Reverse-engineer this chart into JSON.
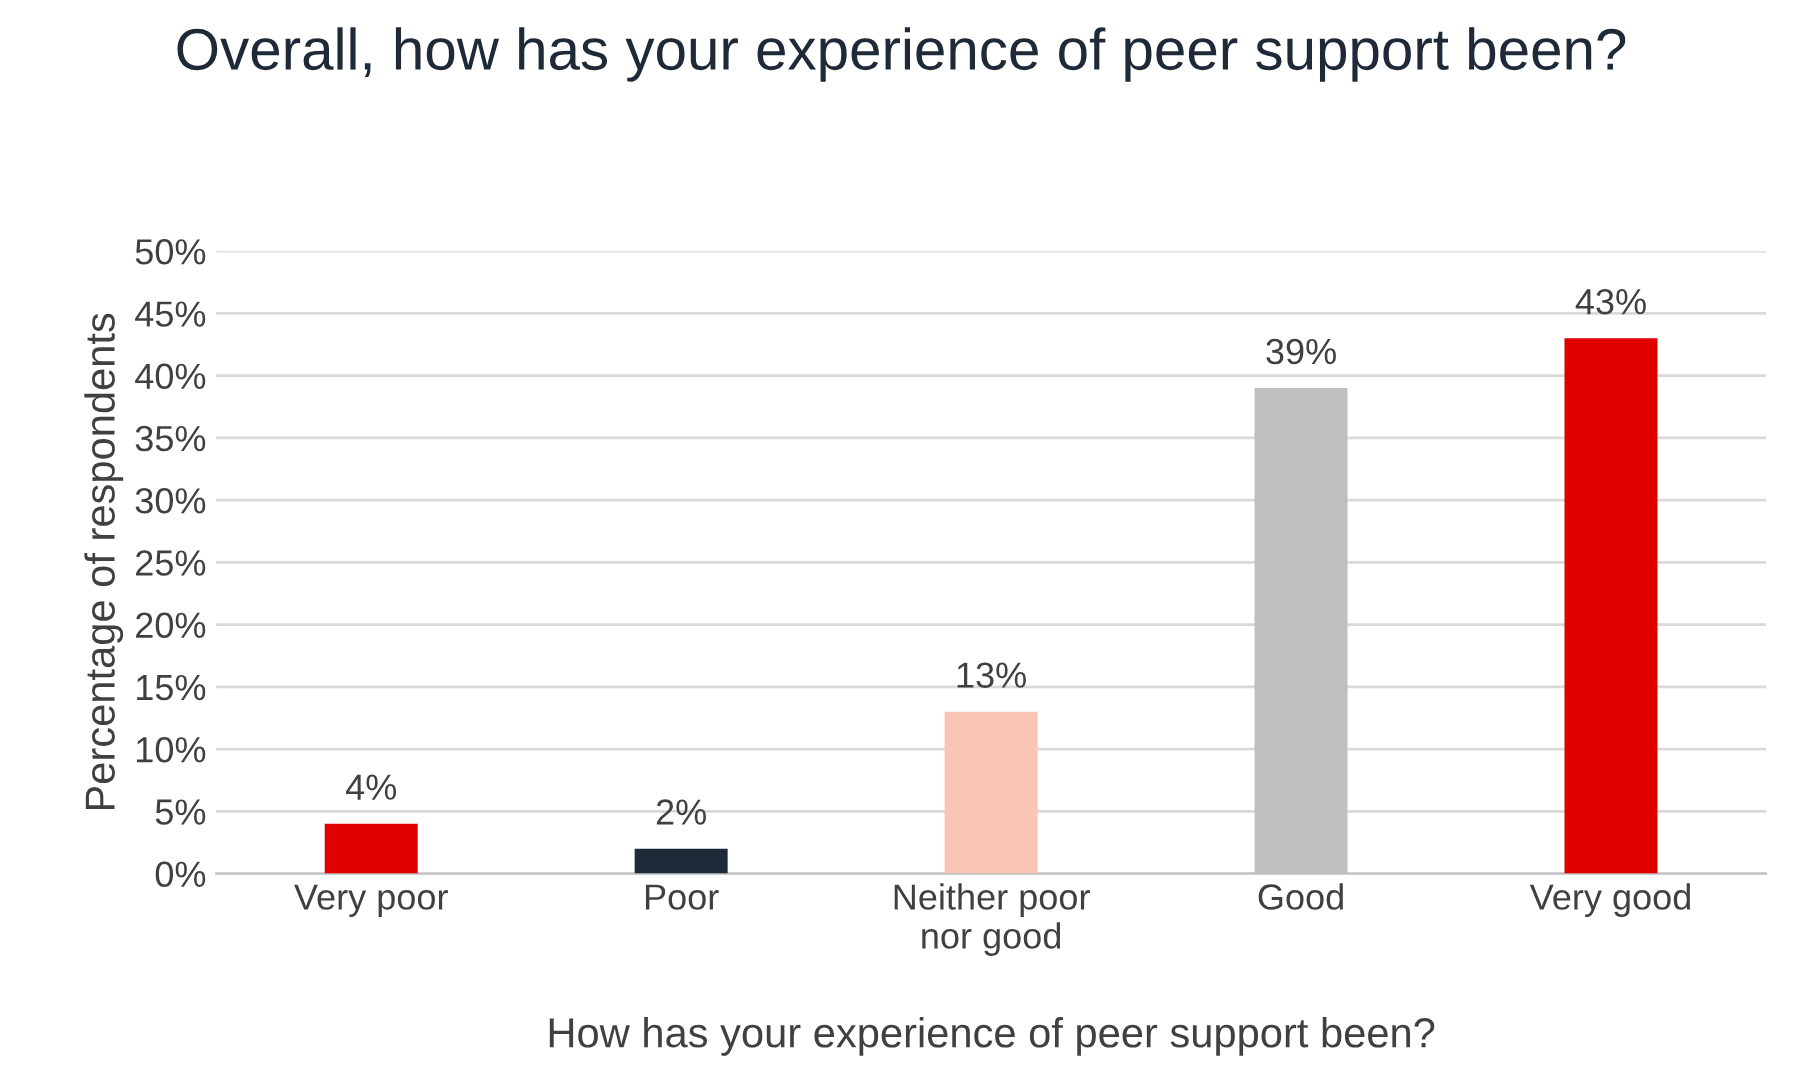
{
  "chart_data": {
    "type": "bar",
    "title": "Overall, how has your experience of peer support been?",
    "xlabel": "How has your experience of peer support been?",
    "ylabel": "Percentage of respondents",
    "categories": [
      "Very poor",
      "Poor",
      "Neither poor\nnor good",
      "Good",
      "Very good"
    ],
    "values": [
      4,
      2,
      13,
      39,
      43
    ],
    "colors": [
      "#e00000",
      "#1f2a38",
      "#f9c6b6",
      "#bfbfbf",
      "#e00000"
    ],
    "value_labels": [
      "4%",
      "2%",
      "13%",
      "39%",
      "43%"
    ],
    "ylim": [
      0,
      50
    ],
    "yticks": [
      {
        "value": 0,
        "label": "0%"
      },
      {
        "value": 5,
        "label": "5%"
      },
      {
        "value": 10,
        "label": "10%"
      },
      {
        "value": 15,
        "label": "15%"
      },
      {
        "value": 20,
        "label": "20%"
      },
      {
        "value": 25,
        "label": "25%"
      },
      {
        "value": 30,
        "label": "30%"
      },
      {
        "value": 35,
        "label": "35%"
      },
      {
        "value": 40,
        "label": "40%"
      },
      {
        "value": 45,
        "label": "45%"
      },
      {
        "value": 50,
        "label": "50%"
      }
    ],
    "grid": "y",
    "legend": false
  }
}
